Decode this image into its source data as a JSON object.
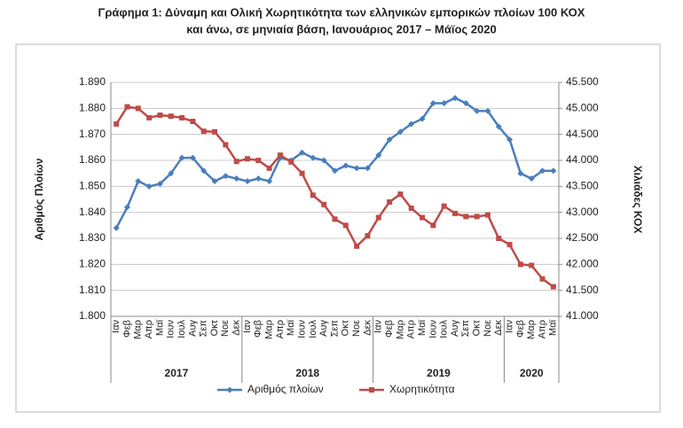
{
  "chart_data": {
    "type": "line",
    "title": "Γράφημα 1: Δύναμη και Ολική Χωρητικότητα των ελληνικών εμπορικών πλοίων 100 ΚΟΧ",
    "subtitle": "και άνω, σε μηνιαία βάση, Ιανουάριος 2017 – Μάϊος 2020",
    "ylabel": "Αριθμός Πλοίων",
    "y2label": "Χιλιάδες ΚΟΧ",
    "categories": [
      "Ιαν",
      "Φεβ",
      "Μαρ",
      "Απρ",
      "Μαϊ",
      "Ιουν",
      "Ιουλ",
      "Αυγ",
      "Σεπ",
      "Οκτ",
      "Νοε",
      "Δεκ",
      "Ιαν",
      "Φεβ",
      "Μαρ",
      "Απρ",
      "Μαϊ",
      "Ιουν",
      "Ιουλ",
      "Αυγ",
      "Σεπ",
      "Οκτ",
      "Νοε",
      "Δεκ",
      "Ιαν",
      "Φεβ",
      "Μαρ",
      "Απρ",
      "Μαϊ",
      "Ιουν",
      "Ιουλ",
      "Αυγ",
      "Σεπ",
      "Οκτ",
      "Νοε",
      "Δεκ",
      "Ιαν",
      "Φεβ",
      "Μαρ",
      "Απρ",
      "Μαϊ"
    ],
    "groups": [
      {
        "label": "2017",
        "span": 12
      },
      {
        "label": "2018",
        "span": 12
      },
      {
        "label": "2019",
        "span": 12
      },
      {
        "label": "2020",
        "span": 5
      }
    ],
    "series": [
      {
        "name": "Αριθμός πλοίων",
        "color": "#4a7ebb",
        "marker": "diamond",
        "values": [
          1834,
          1842,
          1852,
          1850,
          1851,
          1855,
          1861,
          1861,
          1856,
          1852,
          1854,
          1853,
          1852,
          1853,
          1852,
          1861,
          1860,
          1863,
          1861,
          1860,
          1856,
          1858,
          1857,
          1857,
          1862,
          1868,
          1871,
          1874,
          1876,
          1882,
          1882,
          1884,
          1882,
          1879,
          1879,
          1873,
          1868,
          1855,
          1853,
          1856,
          1856
        ]
      },
      {
        "name": "Χωρητικότητα",
        "color": "#be4b48",
        "marker": "square",
        "axis": "y2",
        "values": [
          44700,
          45030,
          45000,
          44820,
          44870,
          44850,
          44820,
          44750,
          44560,
          44550,
          44300,
          43980,
          44030,
          44000,
          43850,
          44100,
          43970,
          43750,
          43330,
          43150,
          42870,
          42750,
          42350,
          42550,
          42900,
          43200,
          43350,
          43080,
          42900,
          42750,
          43120,
          42980,
          42920,
          42920,
          42950,
          42500,
          42380,
          42000,
          41980,
          41720,
          41570
        ]
      }
    ],
    "ylim": [
      1800,
      1890
    ],
    "yticks": [
      {
        "value": 1800,
        "label": "1.800"
      },
      {
        "value": 1810,
        "label": "1.810"
      },
      {
        "value": 1820,
        "label": "1.820"
      },
      {
        "value": 1830,
        "label": "1.830"
      },
      {
        "value": 1840,
        "label": "1.840"
      },
      {
        "value": 1850,
        "label": "1.850"
      },
      {
        "value": 1860,
        "label": "1.860"
      },
      {
        "value": 1870,
        "label": "1.870"
      },
      {
        "value": 1880,
        "label": "1.880"
      },
      {
        "value": 1890,
        "label": "1.890"
      }
    ],
    "y2lim": [
      41000,
      45500
    ],
    "y2ticks": [
      {
        "value": 41000,
        "label": "41.000"
      },
      {
        "value": 41500,
        "label": "41.500"
      },
      {
        "value": 42000,
        "label": "42.000"
      },
      {
        "value": 42500,
        "label": "42.500"
      },
      {
        "value": 43000,
        "label": "43.000"
      },
      {
        "value": 43500,
        "label": "43.500"
      },
      {
        "value": 44000,
        "label": "44.000"
      },
      {
        "value": 44500,
        "label": "44.500"
      },
      {
        "value": 45000,
        "label": "45.000"
      },
      {
        "value": 45500,
        "label": "45.500"
      }
    ],
    "grid": true,
    "legend": "bottom"
  }
}
